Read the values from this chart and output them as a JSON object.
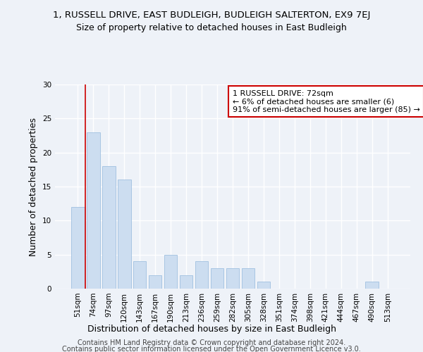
{
  "title_line1": "1, RUSSELL DRIVE, EAST BUDLEIGH, BUDLEIGH SALTERTON, EX9 7EJ",
  "title_line2": "Size of property relative to detached houses in East Budleigh",
  "xlabel": "Distribution of detached houses by size in East Budleigh",
  "ylabel": "Number of detached properties",
  "categories": [
    "51sqm",
    "74sqm",
    "97sqm",
    "120sqm",
    "143sqm",
    "167sqm",
    "190sqm",
    "213sqm",
    "236sqm",
    "259sqm",
    "282sqm",
    "305sqm",
    "328sqm",
    "351sqm",
    "374sqm",
    "398sqm",
    "421sqm",
    "444sqm",
    "467sqm",
    "490sqm",
    "513sqm"
  ],
  "values": [
    12,
    23,
    18,
    16,
    4,
    2,
    5,
    2,
    4,
    3,
    3,
    3,
    1,
    0,
    0,
    0,
    0,
    0,
    0,
    1,
    0
  ],
  "bar_color": "#ccddf0",
  "bar_edge_color": "#a0c0e0",
  "vline_x": 0.5,
  "vline_color": "#cc0000",
  "ylim": [
    0,
    30
  ],
  "yticks": [
    0,
    5,
    10,
    15,
    20,
    25,
    30
  ],
  "annotation_text": "1 RUSSELL DRIVE: 72sqm\n← 6% of detached houses are smaller (6)\n91% of semi-detached houses are larger (85) →",
  "annotation_box_color": "#ffffff",
  "annotation_box_edge": "#cc0000",
  "footer_line1": "Contains HM Land Registry data © Crown copyright and database right 2024.",
  "footer_line2": "Contains public sector information licensed under the Open Government Licence v3.0.",
  "background_color": "#eef2f8",
  "grid_color": "#ffffff",
  "title_fontsize": 9.5,
  "subtitle_fontsize": 9,
  "axis_label_fontsize": 9,
  "tick_fontsize": 7.5,
  "annotation_fontsize": 8,
  "footer_fontsize": 7
}
